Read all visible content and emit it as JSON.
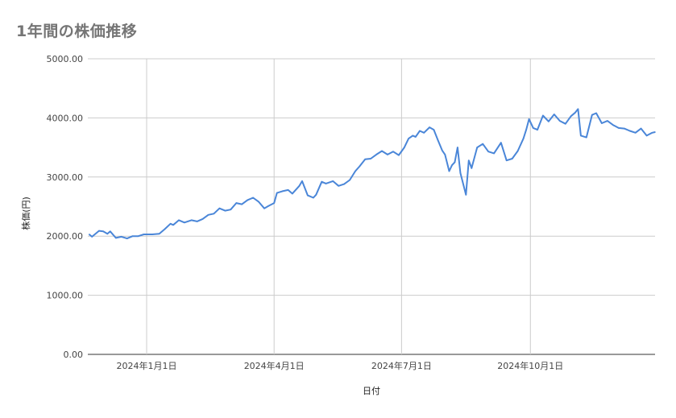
{
  "chart_data": {
    "type": "line",
    "title": "1年間の株価推移",
    "xlabel": "日付",
    "ylabel": "株価(円)",
    "ylim": [
      0,
      5000
    ],
    "y_ticks": [
      "0.00",
      "1000.00",
      "2000.00",
      "3000.00",
      "4000.00",
      "5000.00"
    ],
    "x_range": [
      "2023-11-20",
      "2024-12-29"
    ],
    "x_ticks": [
      {
        "date": "2024-01-01",
        "label": "2024年1月1日"
      },
      {
        "date": "2024-04-01",
        "label": "2024年4月1日"
      },
      {
        "date": "2024-07-01",
        "label": "2024年7月1日"
      },
      {
        "date": "2024-10-01",
        "label": "2024年10月1日"
      }
    ],
    "grid": true,
    "line_color": "#4a86d8",
    "series": [
      {
        "x": [
          "2023-11-21",
          "2023-11-23",
          "2023-11-28",
          "2023-12-01",
          "2023-12-04",
          "2023-12-06",
          "2023-12-10",
          "2023-12-14",
          "2023-12-18",
          "2023-12-22",
          "2023-12-26",
          "2023-12-30",
          "2024-01-05",
          "2024-01-10",
          "2024-01-14",
          "2024-01-18",
          "2024-01-20",
          "2024-01-24",
          "2024-01-28",
          "2024-02-02",
          "2024-02-06",
          "2024-02-10",
          "2024-02-14",
          "2024-02-18",
          "2024-02-22",
          "2024-02-26",
          "2024-03-01",
          "2024-03-05",
          "2024-03-09",
          "2024-03-13",
          "2024-03-17",
          "2024-03-21",
          "2024-03-25",
          "2024-03-28",
          "2024-04-01",
          "2024-04-03",
          "2024-04-07",
          "2024-04-11",
          "2024-04-14",
          "2024-04-19",
          "2024-04-21",
          "2024-04-25",
          "2024-04-29",
          "2024-05-01",
          "2024-05-05",
          "2024-05-08",
          "2024-05-13",
          "2024-05-17",
          "2024-05-21",
          "2024-05-25",
          "2024-05-29",
          "2024-06-01",
          "2024-06-05",
          "2024-06-09",
          "2024-06-13",
          "2024-06-17",
          "2024-06-21",
          "2024-06-25",
          "2024-06-29",
          "2024-07-03",
          "2024-07-06",
          "2024-07-09",
          "2024-07-11",
          "2024-07-14",
          "2024-07-17",
          "2024-07-21",
          "2024-07-24",
          "2024-07-27",
          "2024-07-30",
          "2024-08-01",
          "2024-08-04",
          "2024-08-06",
          "2024-08-08",
          "2024-08-10",
          "2024-08-12",
          "2024-08-16",
          "2024-08-18",
          "2024-08-20",
          "2024-08-24",
          "2024-08-28",
          "2024-09-01",
          "2024-09-05",
          "2024-09-10",
          "2024-09-14",
          "2024-09-18",
          "2024-09-22",
          "2024-09-26",
          "2024-09-28",
          "2024-09-30",
          "2024-10-03",
          "2024-10-06",
          "2024-10-10",
          "2024-10-14",
          "2024-10-18",
          "2024-10-22",
          "2024-10-26",
          "2024-10-30",
          "2024-11-02",
          "2024-11-04",
          "2024-11-06",
          "2024-11-10",
          "2024-11-14",
          "2024-11-17",
          "2024-11-21",
          "2024-11-25",
          "2024-11-29",
          "2024-12-03",
          "2024-12-07",
          "2024-12-11",
          "2024-12-15",
          "2024-12-19",
          "2024-12-23",
          "2024-12-27",
          "2024-12-29"
        ],
        "y": [
          2030,
          1990,
          2090,
          2080,
          2040,
          2080,
          1970,
          1990,
          1960,
          2000,
          2000,
          2030,
          2030,
          2040,
          2120,
          2210,
          2190,
          2270,
          2230,
          2270,
          2250,
          2290,
          2360,
          2380,
          2470,
          2430,
          2450,
          2560,
          2540,
          2610,
          2650,
          2580,
          2470,
          2510,
          2560,
          2730,
          2760,
          2780,
          2720,
          2850,
          2930,
          2690,
          2650,
          2700,
          2920,
          2890,
          2930,
          2850,
          2880,
          2950,
          3100,
          3180,
          3300,
          3310,
          3380,
          3440,
          3380,
          3430,
          3370,
          3500,
          3650,
          3700,
          3680,
          3780,
          3750,
          3840,
          3800,
          3620,
          3450,
          3380,
          3100,
          3200,
          3250,
          3500,
          3070,
          2700,
          3280,
          3150,
          3500,
          3560,
          3430,
          3400,
          3580,
          3280,
          3310,
          3440,
          3650,
          3800,
          3980,
          3830,
          3800,
          4040,
          3940,
          4060,
          3950,
          3900,
          4030,
          4090,
          4150,
          3700,
          3670,
          4050,
          4080,
          3910,
          3950,
          3880,
          3830,
          3820,
          3780,
          3750,
          3820,
          3700,
          3750,
          3760
        ]
      }
    ]
  }
}
